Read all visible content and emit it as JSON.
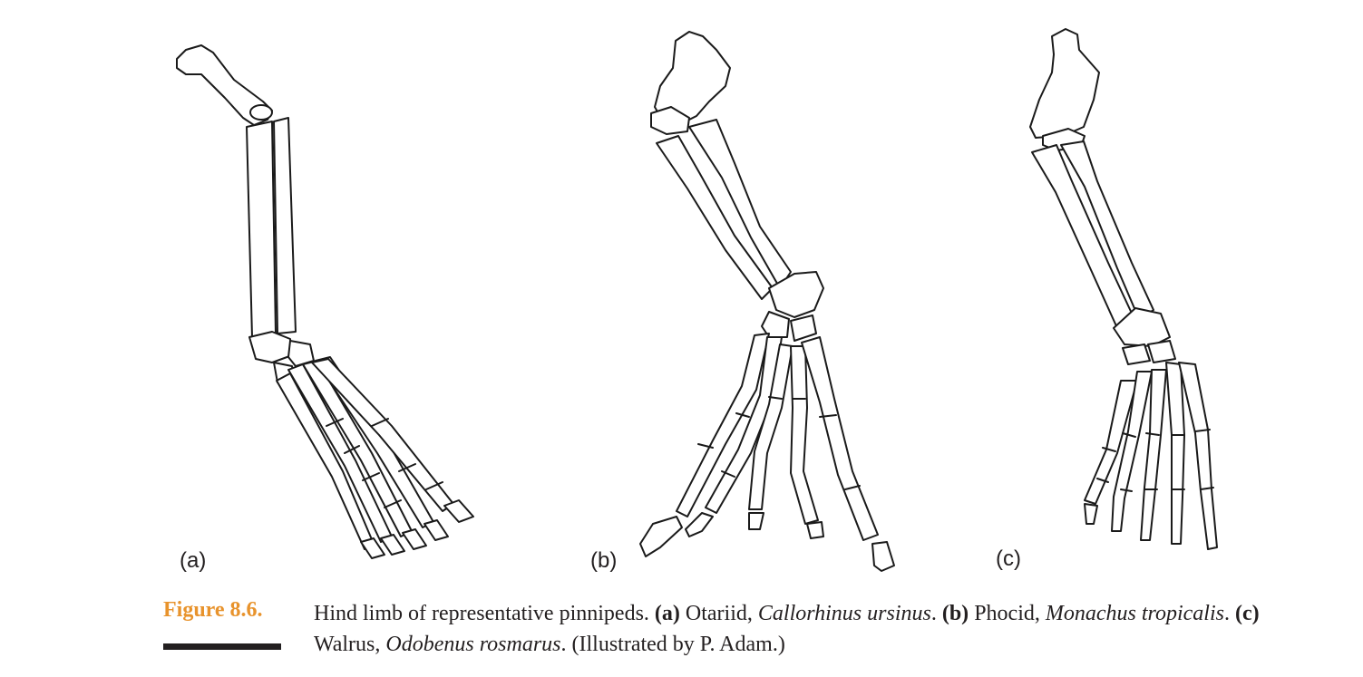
{
  "panels": [
    {
      "label": "(a)"
    },
    {
      "label": "(b)"
    },
    {
      "label": "(c)"
    }
  ],
  "caption": {
    "figure_number": "Figure 8.6.",
    "intro": "Hind limb of representative pinnipeds. ",
    "a_label": "(a)",
    "a_group": " Otariid, ",
    "a_species": "Callorhinus ursinus",
    "a_end": ". ",
    "b_label": "(b)",
    "b_group": " Phocid, ",
    "b_species": "Monachus tropicalis",
    "b_end": ". ",
    "c_label": "(c)",
    "c_group": " Walrus, ",
    "c_species": "Odobenus rosmarus",
    "c_end": ". (Illustrated by P. Adam.)"
  },
  "colors": {
    "figure_number": "#e8932c",
    "ink": "#231f20"
  }
}
